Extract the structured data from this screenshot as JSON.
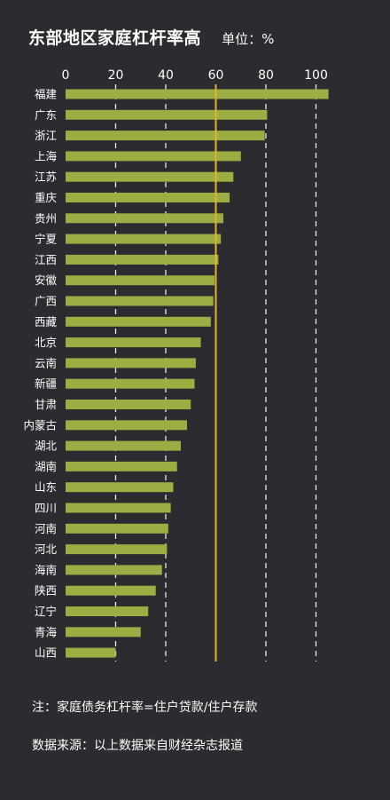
{
  "header": {
    "title": "东部地区家庭杠杆率高",
    "unit": "单位：%"
  },
  "footer": {
    "note": "注：家庭债务杠杆率=住户贷款/住户存款",
    "source": "数据来源：以上数据来自财经杂志报道"
  },
  "colors": {
    "background": "#2b2b30",
    "bar": "#9aae43",
    "reference_line": "#e8b32a",
    "grid": "#e8e8e8",
    "text": "#ffffff"
  },
  "chart_data": {
    "type": "bar",
    "orientation": "horizontal",
    "title": "东部地区家庭杠杆率高",
    "xlabel": "",
    "ylabel": "",
    "xlim": [
      0,
      105
    ],
    "x_ticks": [
      0,
      20,
      40,
      60,
      80,
      100
    ],
    "grid": true,
    "reference_line": 60,
    "categories": [
      "福建",
      "广东",
      "浙江",
      "上海",
      "江苏",
      "重庆",
      "贵州",
      "宁夏",
      "江西",
      "安徽",
      "广西",
      "西藏",
      "北京",
      "云南",
      "新疆",
      "甘肃",
      "内蒙古",
      "湖北",
      "湖南",
      "山东",
      "四川",
      "河南",
      "河北",
      "海南",
      "陕西",
      "辽宁",
      "青海",
      "山西"
    ],
    "values": [
      105,
      80.5,
      79.5,
      70,
      67,
      65.5,
      63,
      62,
      61,
      59.5,
      59,
      58,
      54,
      52,
      51.5,
      50,
      48.5,
      46,
      44.5,
      43,
      42,
      41,
      40.5,
      38.5,
      36,
      33,
      30,
      20
    ]
  }
}
